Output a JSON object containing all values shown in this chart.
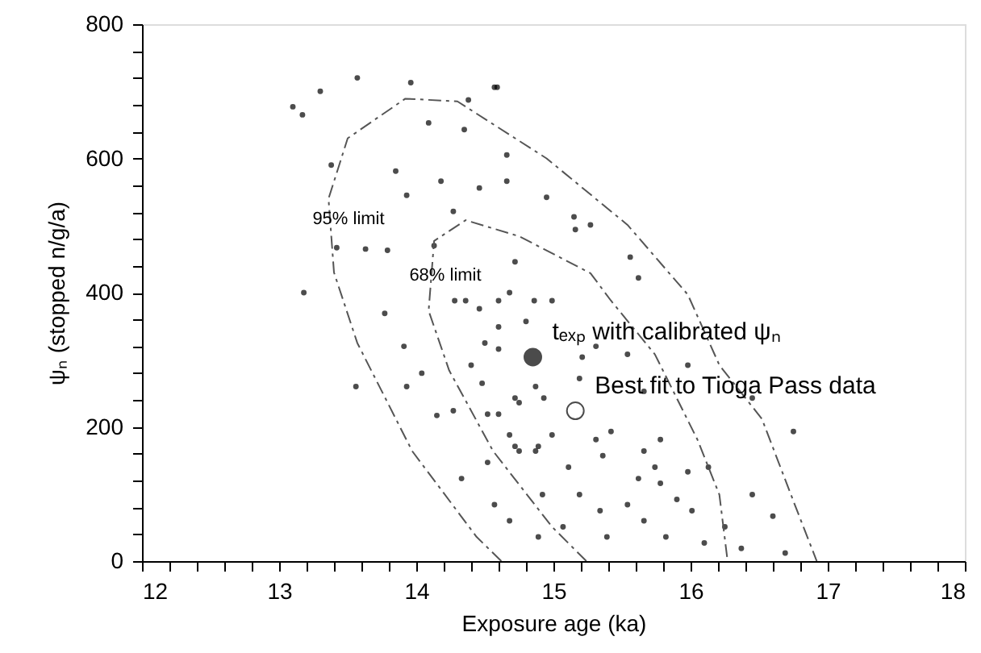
{
  "chart_data": {
    "type": "scatter",
    "xlabel": "Exposure age (ka)",
    "ylabel": "ψₙ  (stopped n/g/a)",
    "xlim": [
      12,
      18
    ],
    "ylim": [
      0,
      800
    ],
    "xticks": [
      12,
      {
        "value": 12.2,
        "label": null
      },
      {
        "value": 12.4,
        "label": null
      },
      {
        "value": 12.6,
        "label": null
      },
      {
        "value": 12.8,
        "label": null
      },
      13,
      {
        "value": 13.2,
        "label": null
      },
      {
        "value": 13.4,
        "label": null
      },
      {
        "value": 13.6,
        "label": null
      },
      {
        "value": 13.8,
        "label": null
      },
      14,
      {
        "value": 14.2,
        "label": null
      },
      {
        "value": 14.4,
        "label": null
      },
      {
        "value": 14.6,
        "label": null
      },
      {
        "value": 14.8,
        "label": null
      },
      15,
      {
        "value": 15.2,
        "label": null
      },
      {
        "value": 15.4,
        "label": null
      },
      {
        "value": 15.6,
        "label": null
      },
      {
        "value": 15.8,
        "label": null
      },
      16,
      {
        "value": 16.2,
        "label": null
      },
      {
        "value": 16.4,
        "label": null
      },
      {
        "value": 16.6,
        "label": null
      },
      {
        "value": 16.8,
        "label": null
      },
      17,
      {
        "value": 17.2,
        "label": null
      },
      {
        "value": 17.4,
        "label": null
      },
      {
        "value": 17.6,
        "label": null
      },
      {
        "value": 17.8,
        "label": null
      },
      18
    ],
    "yticks": [
      0,
      {
        "value": 40,
        "label": null
      },
      {
        "value": 80,
        "label": null
      },
      {
        "value": 120,
        "label": null
      },
      {
        "value": 160,
        "label": null
      },
      200,
      {
        "value": 240,
        "label": null
      },
      {
        "value": 280,
        "label": null
      },
      {
        "value": 320,
        "label": null
      },
      {
        "value": 360,
        "label": null
      },
      400,
      {
        "value": 440,
        "label": null
      },
      {
        "value": 480,
        "label": null
      },
      {
        "value": 520,
        "label": null
      },
      {
        "value": 560,
        "label": null
      },
      600,
      {
        "value": 640,
        "label": null
      },
      {
        "value": 680,
        "label": null
      },
      {
        "value": 720,
        "label": null
      },
      {
        "value": 760,
        "label": null
      },
      800
    ],
    "grid": false,
    "series": [
      {
        "marker": "circle",
        "color": "#000000",
        "x": [
          13.3,
          13.57,
          13.96,
          14.59,
          14.38,
          13.1,
          13.17,
          14.35,
          14.09,
          13.38,
          13.85,
          14.18,
          14.46,
          14.95,
          13.93,
          14.27,
          13.42,
          13.63,
          13.79,
          14.13,
          13.18,
          14.68,
          14.46,
          14.28,
          14.57,
          14.66,
          14.66,
          15.15,
          15.16,
          15.27,
          15.56,
          15.62,
          14.72,
          14.99,
          13.77,
          13.56,
          13.91,
          13.93,
          14.04,
          14.15,
          14.36,
          14.6,
          14.5,
          14.6,
          14.4,
          14.48,
          14.72,
          14.27,
          14.52,
          14.68,
          14.33,
          14.52,
          14.75,
          14.89,
          14.57,
          14.68,
          14.92,
          14.89,
          14.86,
          14.93,
          14.6,
          14.8,
          15.21,
          15.31,
          15.19,
          14.87,
          14.75,
          14.6,
          14.72,
          14.99,
          15.31,
          15.42,
          15.78,
          15.36,
          15.66,
          14.87,
          15.11,
          15.62,
          15.74,
          15.78,
          15.98,
          16.13,
          15.9,
          15.54,
          15.19,
          15.34,
          16.01,
          16.25,
          15.66,
          15.07,
          15.39,
          15.82,
          16.1,
          16.37,
          16.69,
          16.75,
          16.45,
          15.98,
          15.66,
          16.45,
          16.6,
          15.54
        ],
        "values": [
          700,
          720,
          713,
          706,
          687,
          677,
          665,
          643,
          653,
          590,
          581,
          566,
          556,
          542,
          545,
          521,
          467,
          465,
          463,
          470,
          400,
          400,
          376,
          388,
          706,
          605,
          566,
          513,
          494,
          501,
          453,
          422,
          446,
          388,
          369,
          260,
          320,
          260,
          280,
          217,
          388,
          388,
          325,
          316,
          292,
          265,
          243,
          224,
          219,
          188,
          123,
          147,
          164,
          171,
          84,
          60,
          99,
          36,
          388,
          243,
          349,
          357,
          304,
          320,
          272,
          260,
          236,
          219,
          171,
          188,
          181,
          193,
          181,
          157,
          164,
          164,
          140,
          123,
          140,
          116,
          133,
          140,
          92,
          84,
          99,
          75,
          75,
          51,
          60,
          51,
          36,
          36,
          27,
          19,
          12,
          193,
          243,
          292,
          253,
          99,
          67,
          308
        ]
      },
      {
        "type": "line",
        "line_style": "dashed",
        "color": "#555555",
        "x": [
          14.62,
          14.44,
          13.97,
          13.57,
          13.4,
          13.36,
          13.5,
          13.92,
          14.3,
          14.95,
          15.54,
          15.98,
          16.21,
          16.52,
          16.76,
          16.92
        ],
        "values": [
          0,
          36,
          164,
          325,
          430,
          540,
          630,
          689,
          685,
          600,
          501,
          397,
          292,
          212,
          84,
          0
        ]
      },
      {
        "type": "line",
        "line_style": "dashed",
        "color": "#555555",
        "x": [
          15.24,
          14.99,
          14.56,
          14.24,
          14.09,
          14.13,
          14.36,
          14.75,
          15.27,
          15.42,
          15.74,
          16.05,
          16.21,
          16.27
        ],
        "values": [
          0,
          51,
          164,
          284,
          373,
          477,
          508,
          484,
          429,
          388,
          308,
          181,
          99,
          0
        ]
      },
      {
        "marker": "circle",
        "color": "#000000",
        "x": [
          14.85
        ],
        "values": [
          304
        ]
      },
      {
        "marker": "circle",
        "color": "#ffffff",
        "x": [
          15.16
        ],
        "values": [
          224
        ]
      }
    ],
    "annotations": [
      "95% limit",
      "68% limit",
      {
        "text": "tₑₓₚ with calibrated ψₙ",
        "x": 14.85,
        "y": 304
      },
      {
        "text": "Best fit to Tioga Pass data",
        "x": 15.16,
        "y": 224
      }
    ]
  }
}
